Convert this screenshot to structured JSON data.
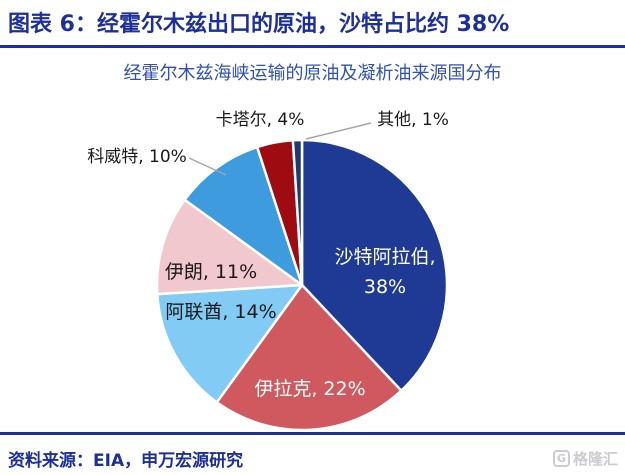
{
  "header": {
    "title": "图表 6：经霍尔木兹出口的原油，沙特占比约 38%"
  },
  "chart_data": {
    "type": "pie",
    "title": "经霍尔木兹海峡运输的原油及凝析油来源国分布",
    "unit": "%",
    "direction": "clockwise",
    "start_angle_deg": 0,
    "legend": "none",
    "data_label_format": "{label}, {value}%",
    "slices": [
      {
        "label": "沙特阿拉伯",
        "value": 38,
        "color": "#1E3A94",
        "text_color": "#FFFFFF",
        "label_position": "inside"
      },
      {
        "label": "伊拉克",
        "value": 22,
        "color": "#D0595F",
        "text_color": "#FFFFFF",
        "label_position": "inside"
      },
      {
        "label": "阿联酋",
        "value": 14,
        "color": "#82CBF5",
        "text_color": "#1A1A1A",
        "label_position": "inside"
      },
      {
        "label": "伊朗",
        "value": 11,
        "color": "#F0C8CD",
        "text_color": "#1A1A1A",
        "label_position": "inside"
      },
      {
        "label": "科威特",
        "value": 10,
        "color": "#3E9BDE",
        "text_color": "#1A1A1A",
        "label_position": "outside"
      },
      {
        "label": "卡塔尔",
        "value": 4,
        "color": "#9E0B10",
        "text_color": "#1A1A1A",
        "label_position": "outside"
      },
      {
        "label": "其他",
        "value": 1,
        "color": "#24386E",
        "text_color": "#1A1A1A",
        "label_position": "outside"
      }
    ]
  },
  "footer": {
    "source": "资料来源：EIA，申万宏源研究",
    "logo_letter": "G",
    "logo_text": "格隆汇"
  },
  "colors": {
    "title_blue": "#1D2F9B",
    "subtitle_blue": "#3050B5",
    "rule_blue": "#1D2F9B",
    "leader_gray": "#A6A6A6",
    "background": "#FFFFFF"
  }
}
